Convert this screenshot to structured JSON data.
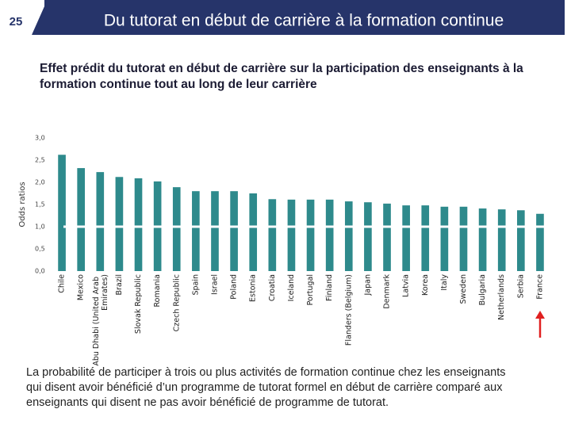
{
  "slide_number": "25",
  "header": {
    "title": "Du tutorat en début de carrière à la formation continue"
  },
  "chart_data": {
    "type": "bar",
    "title": "Effet prédit du tutorat en début de carrière sur la participation des enseignants à la formation continue tout au long de leur carrière",
    "y_label": "Odds ratios",
    "categories": [
      "Chile",
      "Mexico",
      "Abu Dhabi (United Arab Emirates)",
      "Brazil",
      "Slovak Republic",
      "Romania",
      "Czech Republic",
      "Spain",
      "Israel",
      "Poland",
      "Estonia",
      "Croatia",
      "Iceland",
      "Portugal",
      "Finland",
      "Flanders (Belgium)",
      "Japan",
      "Denmark",
      "Latvia",
      "Korea",
      "Italy",
      "Sweden",
      "Bulgaria",
      "Netherlands",
      "Serbia",
      "France"
    ],
    "values": [
      2.62,
      2.32,
      2.23,
      2.12,
      2.09,
      2.02,
      1.89,
      1.8,
      1.8,
      1.8,
      1.75,
      1.62,
      1.61,
      1.61,
      1.61,
      1.57,
      1.55,
      1.52,
      1.48,
      1.48,
      1.45,
      1.45,
      1.41,
      1.39,
      1.37,
      1.29
    ],
    "color": "#2e8a8c",
    "ylim": [
      0,
      3
    ],
    "yticks": [
      {
        "value": 0,
        "label": "0,0"
      },
      {
        "value": 0.5,
        "label": "0,5"
      },
      {
        "value": 1,
        "label": "1,0"
      },
      {
        "value": 1.5,
        "label": "1,5"
      },
      {
        "value": 2,
        "label": "2,0"
      },
      {
        "value": 2.5,
        "label": "2,5"
      },
      {
        "value": 3,
        "label": "3,0"
      }
    ],
    "reference_line": 1,
    "grid": false
  },
  "footer": {
    "text": "La probabilité de participer à trois ou plus activités de formation continue chez les enseignants qui disent avoir bénéficié d’un programme de tutorat formel en début de carrière comparé aux enseignants qui disent ne pas avoir bénéficié de programme de tutorat."
  }
}
